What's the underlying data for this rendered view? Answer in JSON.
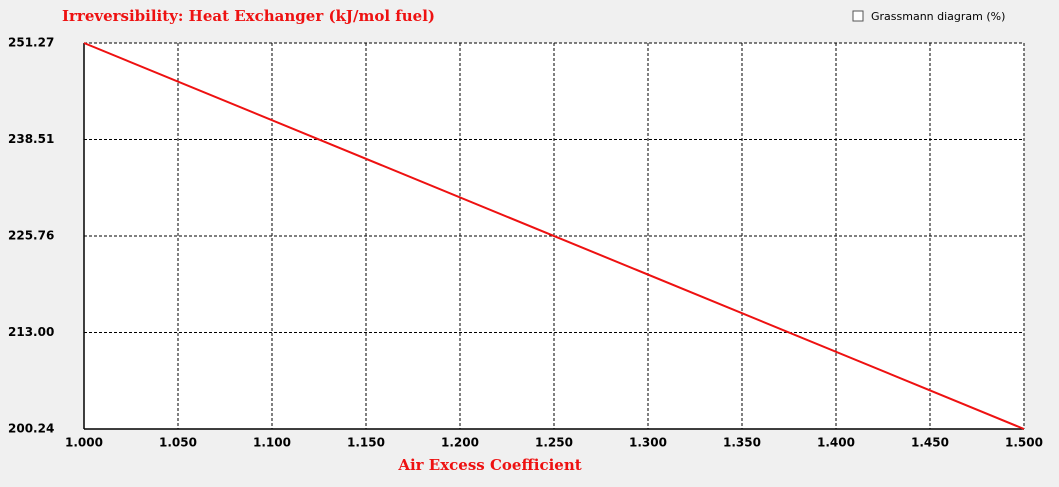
{
  "chart_data": {
    "type": "line",
    "title": "Irreversibility: Heat Exchanger (kJ/mol fuel)",
    "x_label": "Air Excess Coefficient",
    "x": [
      1.0,
      1.5
    ],
    "values": [
      251.27,
      200.24
    ],
    "color": "#ee1111",
    "xlim": [
      1.0,
      1.5
    ],
    "xticks": [
      {
        "value": 1.0,
        "label": "1.000"
      },
      {
        "value": 1.05,
        "label": "1.050"
      },
      {
        "value": 1.1,
        "label": "1.100"
      },
      {
        "value": 1.15,
        "label": "1.150"
      },
      {
        "value": 1.2,
        "label": "1.200"
      },
      {
        "value": 1.25,
        "label": "1.250"
      },
      {
        "value": 1.3,
        "label": "1.300"
      },
      {
        "value": 1.35,
        "label": "1.350"
      },
      {
        "value": 1.4,
        "label": "1.400"
      },
      {
        "value": 1.45,
        "label": "1.450"
      },
      {
        "value": 1.5,
        "label": "1.500"
      }
    ],
    "ylim": [
      200.24,
      251.27
    ],
    "yticks": [
      200.24,
      {
        "value": 213,
        "label": "213.00"
      },
      225.76,
      238.51,
      251.27
    ],
    "grid": true
  },
  "controls": {
    "grassmann_checkbox": {
      "label": "Grassmann diagram (%)",
      "checked": false
    }
  }
}
